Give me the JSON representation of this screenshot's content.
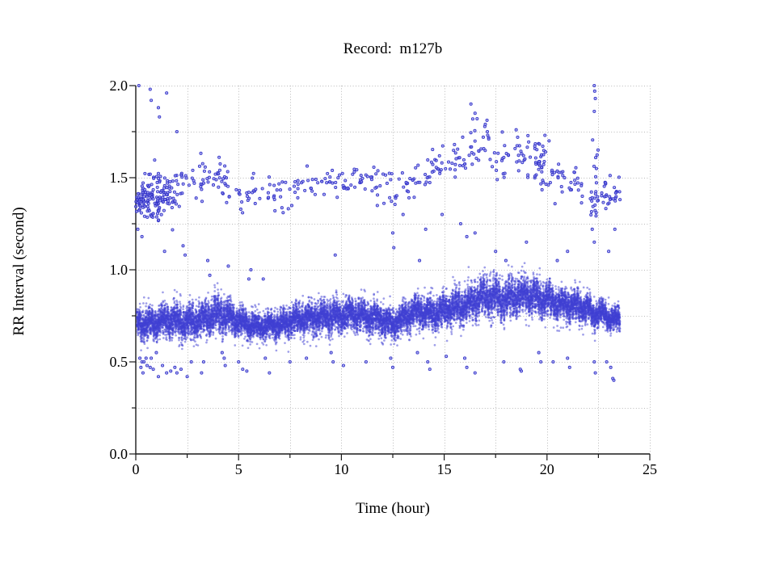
{
  "chart_data": {
    "type": "scatter",
    "title": "Record:  m127b",
    "xlabel": "Time (hour)",
    "ylabel": "RR Interval (second)",
    "xlim": [
      0,
      25
    ],
    "ylim": [
      0.0,
      2.0
    ],
    "x_major_ticks": [
      {
        "v": 0,
        "label": "0"
      },
      {
        "v": 5,
        "label": "5"
      },
      {
        "v": 10,
        "label": "10"
      },
      {
        "v": 15,
        "label": "15"
      },
      {
        "v": 20,
        "label": "20"
      },
      {
        "v": 25,
        "label": "25"
      }
    ],
    "y_major_ticks": [
      {
        "v": 0.0,
        "label": "0.0"
      },
      {
        "v": 0.5,
        "label": "0.5"
      },
      {
        "v": 1.0,
        "label": "1.0"
      },
      {
        "v": 1.5,
        "label": "1.5"
      },
      {
        "v": 2.0,
        "label": "2.0"
      }
    ],
    "x_minor_step": 2.5,
    "y_minor_step": 0.25,
    "grid": {
      "on": true,
      "style": "dotted",
      "color": "#b9b9b9",
      "x_step": 2.5,
      "y_step": 0.25
    },
    "axis_color": "#1a1a1a",
    "point_stroke_color": "#3232c8",
    "point_fill_color": "#8686e8",
    "dense_point_color": "#4040d4",
    "seed": 1337,
    "time_range_hours": [
      0.05,
      23.55
    ],
    "main_band": {
      "description": "dense RR-interval band, ~16000 beats",
      "n_points": 16000,
      "center_profile": [
        [
          0.0,
          0.72
        ],
        [
          0.5,
          0.7
        ],
        [
          1.0,
          0.71
        ],
        [
          1.5,
          0.73
        ],
        [
          2.0,
          0.72
        ],
        [
          2.5,
          0.71
        ],
        [
          3.0,
          0.73
        ],
        [
          3.5,
          0.74
        ],
        [
          4.0,
          0.76
        ],
        [
          4.3,
          0.75
        ],
        [
          5.0,
          0.72
        ],
        [
          5.5,
          0.7
        ],
        [
          6.0,
          0.69
        ],
        [
          6.5,
          0.7
        ],
        [
          7.0,
          0.7
        ],
        [
          7.5,
          0.72
        ],
        [
          8.0,
          0.73
        ],
        [
          8.5,
          0.74
        ],
        [
          9.0,
          0.74
        ],
        [
          9.5,
          0.75
        ],
        [
          10.0,
          0.75
        ],
        [
          10.5,
          0.76
        ],
        [
          11.0,
          0.75
        ],
        [
          11.5,
          0.74
        ],
        [
          12.0,
          0.73
        ],
        [
          12.5,
          0.7
        ],
        [
          13.0,
          0.74
        ],
        [
          13.5,
          0.77
        ],
        [
          14.0,
          0.77
        ],
        [
          14.5,
          0.76
        ],
        [
          15.0,
          0.78
        ],
        [
          15.5,
          0.8
        ],
        [
          16.0,
          0.8
        ],
        [
          16.5,
          0.84
        ],
        [
          17.0,
          0.86
        ],
        [
          17.5,
          0.85
        ],
        [
          18.0,
          0.83
        ],
        [
          18.5,
          0.86
        ],
        [
          19.0,
          0.87
        ],
        [
          19.5,
          0.84
        ],
        [
          20.0,
          0.84
        ],
        [
          20.5,
          0.82
        ],
        [
          21.0,
          0.81
        ],
        [
          21.5,
          0.8
        ],
        [
          22.0,
          0.79
        ],
        [
          22.3,
          0.75
        ],
        [
          22.6,
          0.77
        ],
        [
          23.0,
          0.74
        ],
        [
          23.5,
          0.73
        ]
      ],
      "spread_profile": [
        [
          0.0,
          0.045
        ],
        [
          2.0,
          0.05
        ],
        [
          4.0,
          0.06
        ],
        [
          4.6,
          0.05
        ],
        [
          6.0,
          0.035
        ],
        [
          7.5,
          0.045
        ],
        [
          10.0,
          0.05
        ],
        [
          12.5,
          0.045
        ],
        [
          14.0,
          0.05
        ],
        [
          16.0,
          0.055
        ],
        [
          17.0,
          0.06
        ],
        [
          19.0,
          0.06
        ],
        [
          20.5,
          0.05
        ],
        [
          22.0,
          0.045
        ],
        [
          23.0,
          0.035
        ],
        [
          23.5,
          0.04
        ]
      ],
      "burst_probability": 0.045,
      "burst_amplitude": 0.2
    },
    "upper_band_segments": [
      [
        0.0,
        0.6,
        1.37,
        0.05,
        55
      ],
      [
        0.6,
        1.2,
        1.4,
        0.07,
        60
      ],
      [
        1.2,
        2.0,
        1.42,
        0.06,
        45
      ],
      [
        2.0,
        3.0,
        1.47,
        0.05,
        18
      ],
      [
        3.0,
        4.0,
        1.5,
        0.05,
        22
      ],
      [
        4.0,
        4.6,
        1.47,
        0.06,
        20
      ],
      [
        4.6,
        5.6,
        1.4,
        0.04,
        12
      ],
      [
        5.6,
        6.6,
        1.44,
        0.04,
        14
      ],
      [
        6.6,
        7.6,
        1.41,
        0.05,
        16
      ],
      [
        7.6,
        8.6,
        1.46,
        0.04,
        16
      ],
      [
        8.6,
        9.6,
        1.48,
        0.03,
        14
      ],
      [
        9.6,
        10.6,
        1.47,
        0.04,
        16
      ],
      [
        10.6,
        11.6,
        1.5,
        0.03,
        18
      ],
      [
        11.6,
        12.6,
        1.47,
        0.05,
        16
      ],
      [
        12.6,
        13.6,
        1.44,
        0.06,
        18
      ],
      [
        13.6,
        14.4,
        1.5,
        0.05,
        14
      ],
      [
        14.4,
        15.2,
        1.55,
        0.05,
        16
      ],
      [
        15.2,
        16.2,
        1.58,
        0.06,
        18
      ],
      [
        16.2,
        17.2,
        1.68,
        0.08,
        22
      ],
      [
        17.2,
        18.2,
        1.6,
        0.07,
        18
      ],
      [
        18.2,
        19.2,
        1.62,
        0.06,
        20
      ],
      [
        19.4,
        19.9,
        1.55,
        0.07,
        32
      ],
      [
        19.9,
        21.0,
        1.48,
        0.06,
        20
      ],
      [
        21.0,
        21.8,
        1.47,
        0.05,
        16
      ],
      [
        22.1,
        22.5,
        1.45,
        0.12,
        25
      ],
      [
        22.5,
        23.0,
        1.38,
        0.05,
        12
      ],
      [
        23.0,
        23.6,
        1.42,
        0.05,
        16
      ]
    ],
    "outliers_high": [
      [
        0.15,
        2.0
      ],
      [
        0.7,
        1.98
      ],
      [
        0.75,
        1.92
      ],
      [
        1.1,
        1.88
      ],
      [
        1.15,
        1.83
      ],
      [
        1.5,
        1.96
      ],
      [
        2.0,
        1.75
      ],
      [
        15.5,
        1.68
      ],
      [
        15.9,
        1.72
      ],
      [
        16.3,
        1.9
      ],
      [
        16.5,
        1.85
      ],
      [
        16.6,
        1.82
      ],
      [
        16.9,
        1.72
      ],
      [
        17.0,
        1.79
      ],
      [
        17.1,
        1.75
      ],
      [
        18.5,
        1.76
      ],
      [
        19.9,
        1.73
      ],
      [
        20.1,
        1.7
      ],
      [
        22.3,
        2.0
      ],
      [
        22.32,
        1.97
      ],
      [
        22.35,
        1.93
      ],
      [
        22.3,
        1.86
      ]
    ],
    "outliers_mid": [
      [
        0.1,
        1.22
      ],
      [
        0.3,
        1.18
      ],
      [
        1.4,
        1.1
      ],
      [
        2.3,
        1.13
      ],
      [
        2.4,
        1.08
      ],
      [
        3.5,
        1.05
      ],
      [
        3.6,
        0.97
      ],
      [
        4.5,
        1.02
      ],
      [
        5.5,
        0.95
      ],
      [
        5.6,
        1.0
      ],
      [
        6.2,
        0.95
      ],
      [
        9.7,
        1.08
      ],
      [
        12.5,
        1.2
      ],
      [
        12.55,
        1.12
      ],
      [
        13.0,
        1.3
      ],
      [
        13.8,
        1.05
      ],
      [
        14.1,
        1.22
      ],
      [
        14.9,
        1.3
      ],
      [
        15.8,
        1.25
      ],
      [
        16.1,
        1.18
      ],
      [
        16.5,
        1.2
      ],
      [
        17.5,
        1.1
      ],
      [
        18.0,
        1.05
      ],
      [
        19.0,
        1.15
      ],
      [
        20.5,
        1.05
      ],
      [
        21.0,
        1.1
      ],
      [
        22.2,
        1.22
      ],
      [
        22.3,
        1.15
      ],
      [
        23.0,
        1.1
      ],
      [
        23.3,
        1.22
      ]
    ],
    "outliers_low": [
      [
        0.2,
        0.52
      ],
      [
        0.25,
        0.47
      ],
      [
        0.3,
        0.5
      ],
      [
        0.35,
        0.44
      ],
      [
        0.4,
        0.5
      ],
      [
        0.5,
        0.52
      ],
      [
        0.55,
        0.48
      ],
      [
        0.7,
        0.47
      ],
      [
        0.75,
        0.52
      ],
      [
        0.85,
        0.46
      ],
      [
        1.0,
        0.55
      ],
      [
        1.1,
        0.42
      ],
      [
        1.3,
        0.48
      ],
      [
        1.5,
        0.44
      ],
      [
        1.7,
        0.45
      ],
      [
        1.9,
        0.47
      ],
      [
        2.0,
        0.44
      ],
      [
        2.2,
        0.46
      ],
      [
        2.5,
        0.42
      ],
      [
        2.7,
        0.5
      ],
      [
        3.2,
        0.44
      ],
      [
        3.3,
        0.5
      ],
      [
        4.2,
        0.55
      ],
      [
        4.3,
        0.52
      ],
      [
        4.35,
        0.48
      ],
      [
        5.0,
        0.5
      ],
      [
        5.2,
        0.46
      ],
      [
        5.4,
        0.45
      ],
      [
        6.3,
        0.52
      ],
      [
        6.5,
        0.44
      ],
      [
        7.5,
        0.5
      ],
      [
        8.3,
        0.52
      ],
      [
        9.5,
        0.55
      ],
      [
        9.6,
        0.5
      ],
      [
        10.1,
        0.48
      ],
      [
        11.2,
        0.5
      ],
      [
        12.4,
        0.52
      ],
      [
        12.5,
        0.47
      ],
      [
        13.7,
        0.55
      ],
      [
        14.2,
        0.5
      ],
      [
        14.3,
        0.46
      ],
      [
        15.1,
        0.53
      ],
      [
        16.0,
        0.52
      ],
      [
        16.1,
        0.47
      ],
      [
        16.5,
        0.44
      ],
      [
        17.9,
        0.5
      ],
      [
        18.7,
        0.46
      ],
      [
        18.75,
        0.45
      ],
      [
        19.6,
        0.55
      ],
      [
        19.7,
        0.5
      ],
      [
        20.3,
        0.5
      ],
      [
        21.0,
        0.52
      ],
      [
        21.1,
        0.47
      ],
      [
        22.3,
        0.5
      ],
      [
        22.35,
        0.44
      ],
      [
        22.9,
        0.5
      ],
      [
        23.1,
        0.47
      ],
      [
        23.2,
        0.41
      ],
      [
        23.25,
        0.4
      ]
    ]
  }
}
